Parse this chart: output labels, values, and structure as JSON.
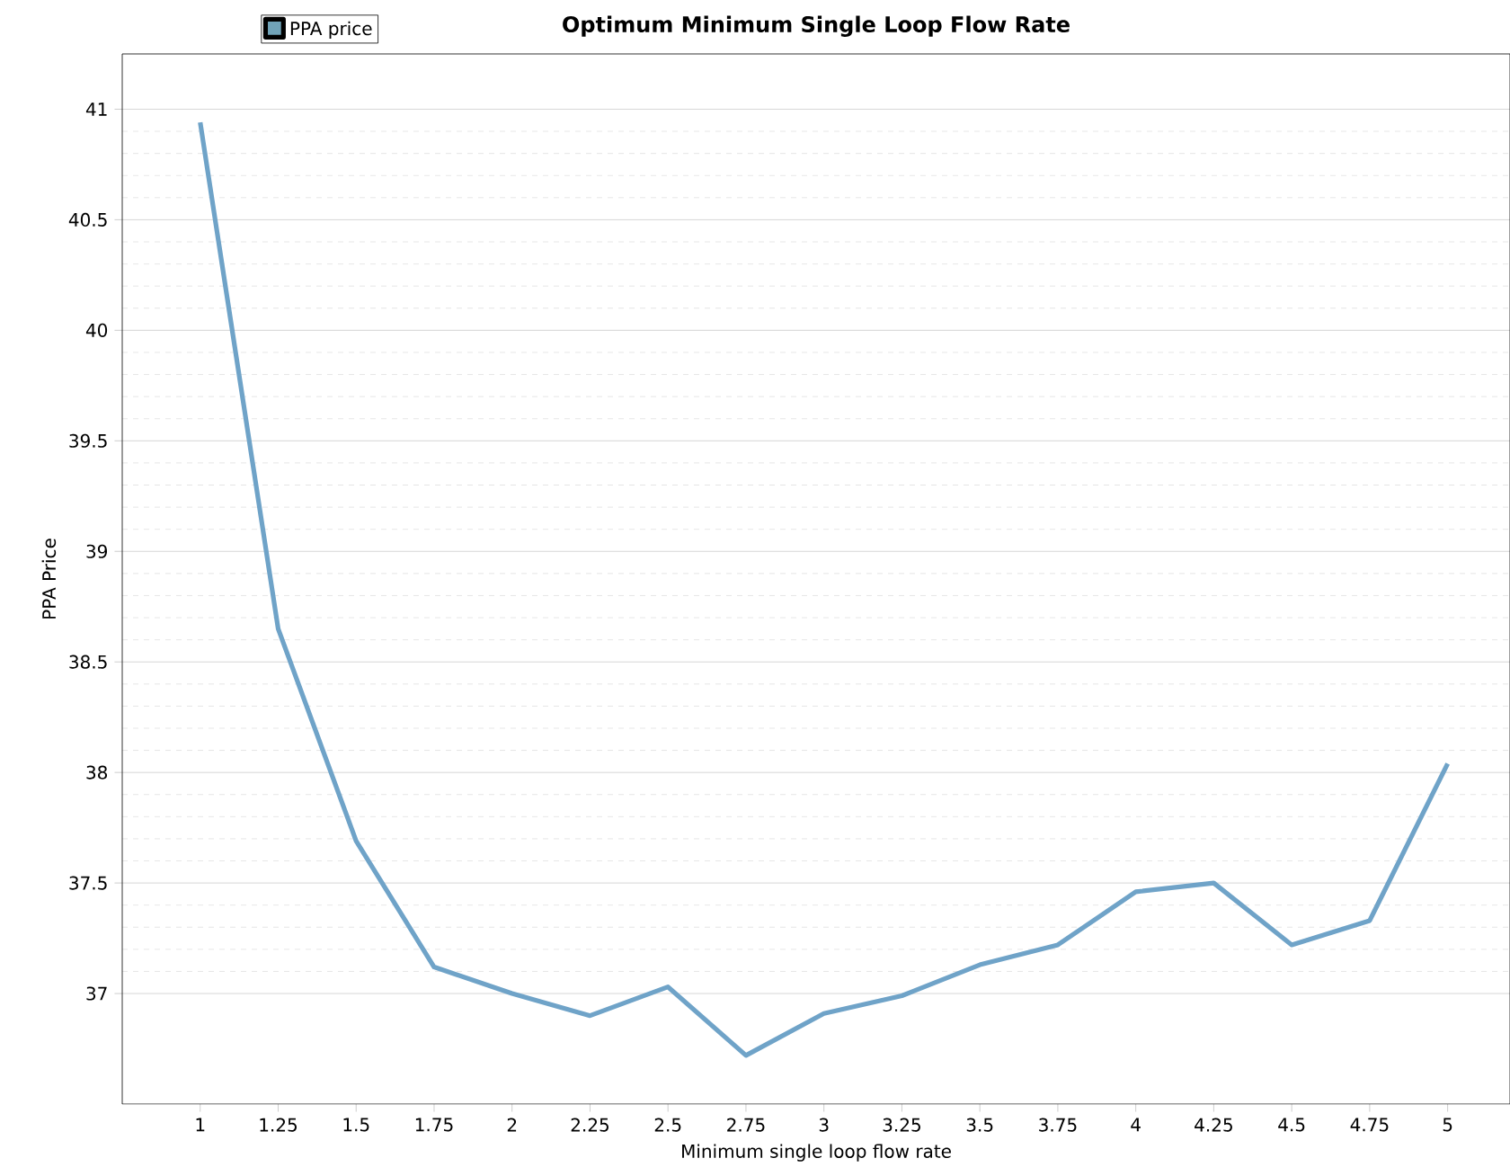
{
  "chart_data": {
    "type": "line",
    "title": "Optimum Minimum Single Loop Flow Rate",
    "xlabel": "Minimum single loop flow rate",
    "ylabel": "PPA Price",
    "x": [
      1,
      1.25,
      1.5,
      1.75,
      2,
      2.25,
      2.5,
      2.75,
      3,
      3.25,
      3.5,
      3.75,
      4,
      4.25,
      4.5,
      4.75,
      5
    ],
    "series": [
      {
        "name": "PPA price",
        "color": "#6fa3c8",
        "values": [
          40.94,
          38.65,
          37.69,
          37.12,
          37.0,
          36.9,
          37.03,
          36.72,
          36.91,
          36.99,
          37.13,
          37.22,
          37.46,
          37.5,
          37.22,
          37.33,
          38.04
        ]
      }
    ],
    "xlim": [
      0.75,
      5.2
    ],
    "xticks": [
      1,
      1.25,
      1.5,
      1.75,
      2,
      2.25,
      2.5,
      2.75,
      3,
      3.25,
      3.5,
      3.75,
      4,
      4.25,
      4.5,
      4.75,
      5
    ],
    "ylim": [
      36.5,
      41.25
    ],
    "yticks": [
      37,
      37.5,
      38,
      38.5,
      39,
      39.5,
      40,
      40.5,
      41
    ],
    "grid": "y",
    "legend": "top left",
    "marker": "none",
    "line_style": "solid"
  }
}
